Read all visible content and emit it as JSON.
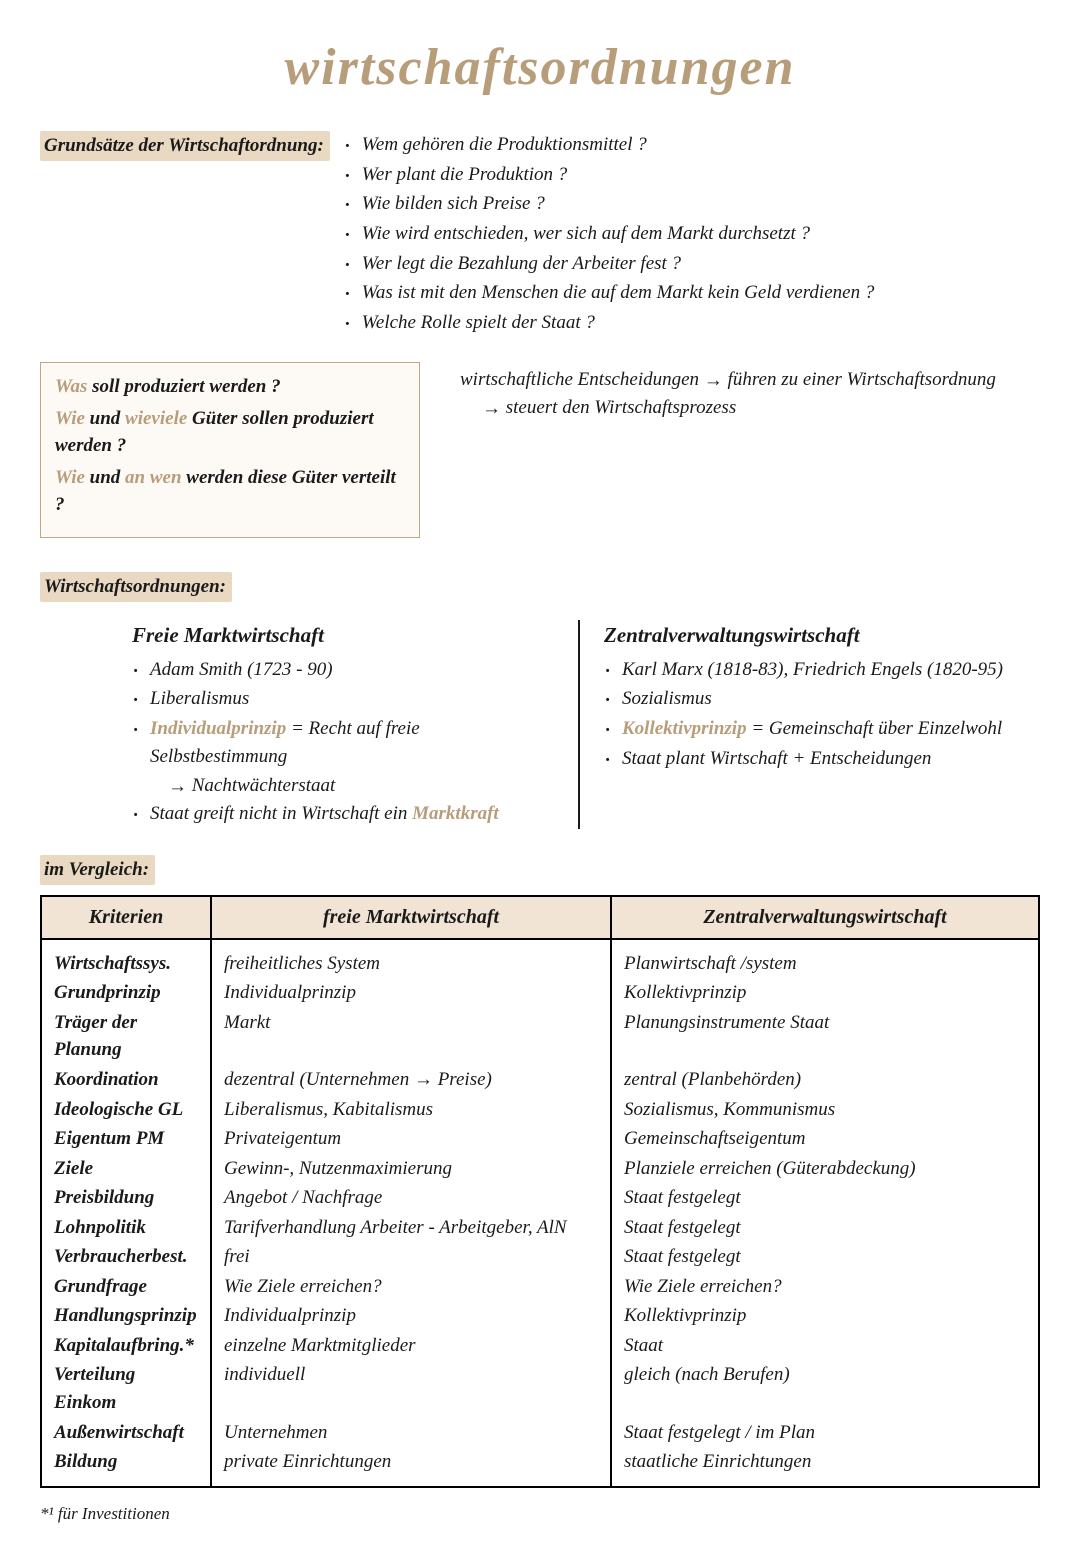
{
  "colors": {
    "accent": "#b89d7a",
    "highlight_bg": "#e9d9c2",
    "box_border": "#c0a884",
    "box_bg": "#fdfaf5",
    "text": "#1a1a1a",
    "page_bg": "#ffffff",
    "table_header_bg": "#f1e4d4",
    "table_border": "#000000"
  },
  "title": "Wirtschaftsordnungen",
  "grundsaetze": {
    "label": "Grundsätze der Wirtschaftordnung:",
    "items": [
      "Wem gehören die Produktionsmittel ?",
      "Wer plant die Produktion ?",
      "Wie bilden sich Preise ?",
      "Wie wird entschieden, wer sich auf dem Markt durchsetzt ?",
      "Wer legt die Bezahlung der Arbeiter fest ?",
      "Was ist mit den Menschen die auf dem Markt kein Geld verdienen ?",
      "Welche Rolle spielt der Staat ?"
    ]
  },
  "box": {
    "l1_pre": "Was",
    "l1_rest": " soll produziert werden ?",
    "l2_pre": "Wie",
    "l2_mid": " und ",
    "l2_acc": "wieviele",
    "l2_rest": " Güter sollen produziert werden ?",
    "l3_pre": "Wie",
    "l3_mid": " und ",
    "l3_acc": "an wen",
    "l3_rest": " werden diese Güter verteilt ?"
  },
  "decisions": {
    "line1a": "wirtschaftliche Entscheidungen ",
    "line1b": " führen zu einer Wirtschaftsordnung",
    "line2": " steuert den Wirtschaftsprozess",
    "arrow": "→"
  },
  "ordnungen_label": "Wirtschaftsordnungen:",
  "freie": {
    "title": "Freie Marktwirtschaft",
    "i1": "Adam Smith (1723 - 90)",
    "i2": "Liberalismus",
    "i3_acc": "Individualprinzip",
    "i3_rest": " = Recht auf freie Selbstbestimmung",
    "i3_sub": "Nachtwächterstaat",
    "i4_text": "Staat greift nicht in Wirtschaft ein ",
    "i4_acc": "Marktkraft"
  },
  "zentral": {
    "title": "Zentralverwaltungswirtschaft",
    "i1": "Karl Marx (1818-83), Friedrich Engels (1820-95)",
    "i2": "Sozialismus",
    "i3_acc": "Kollektivprinzip",
    "i3_rest": " = Gemeinschaft über Einzelwohl",
    "i4": "Staat plant Wirtschaft + Entscheidungen"
  },
  "vergleich_label": "im Vergleich:",
  "table": {
    "headers": [
      "Kriterien",
      "freie Marktwirtschaft",
      "Zentralverwaltungswirtschaft"
    ],
    "rows": [
      [
        "Wirtschaftssys.",
        "freiheitliches System",
        "Planwirtschaft /system"
      ],
      [
        "Grundprinzip",
        "Individualprinzip",
        "Kollektivprinzip"
      ],
      [
        "Träger der Planung",
        "Markt",
        "Planungsinstrumente Staat"
      ],
      [
        "Koordination",
        "dezentral  (Unternehmen → Preise)",
        "zentral (Planbehörden)"
      ],
      [
        "Ideologische GL",
        "Liberalismus, Kabitalismus",
        "Sozialismus, Kommunismus"
      ],
      [
        "Eigentum PM",
        "Privateigentum",
        "Gemeinschaftseigentum"
      ],
      [
        "Ziele",
        "Gewinn-, Nutzenmaximierung",
        "Planziele erreichen (Güterabdeckung)"
      ],
      [
        "Preisbildung",
        "Angebot / Nachfrage",
        "Staat festgelegt"
      ],
      [
        "Lohnpolitik",
        "Tarifverhandlung Arbeiter - Arbeitgeber, AlN",
        "Staat festgelegt"
      ],
      [
        "Verbraucherbest.",
        "frei",
        "Staat festgelegt"
      ],
      [
        "Grundfrage",
        "Wie Ziele erreichen?",
        "Wie Ziele erreichen?"
      ],
      [
        "Handlungsprinzip",
        "Individualprinzip",
        "Kollektivprinzip"
      ],
      [
        "Kapitalaufbring.*",
        "einzelne Marktmitglieder",
        "Staat"
      ],
      [
        "Verteilung Einkom",
        "individuell",
        "gleich (nach Berufen)"
      ],
      [
        "Außenwirtschaft",
        "Unternehmen",
        "Staat festgelegt / im Plan"
      ],
      [
        "Bildung",
        "private Einrichtungen",
        "staatliche Einrichtungen"
      ]
    ]
  },
  "footnote": "*¹ für Investitionen"
}
